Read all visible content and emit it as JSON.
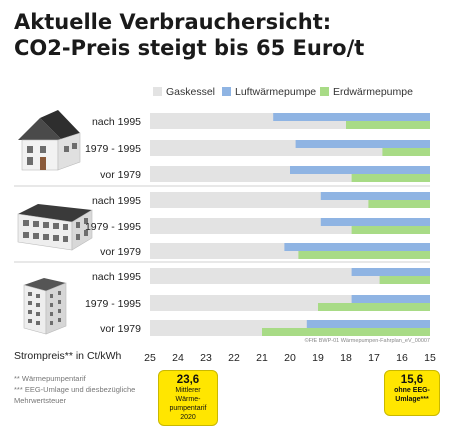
{
  "title_line1": "Aktuelle Verbrauchersicht:",
  "title_line2": "CO2-Preis steigt bis 65 Euro/t",
  "chart_data": {
    "type": "bar",
    "orientation": "horizontal",
    "x_axis_reversed": true,
    "xlim": [
      25,
      15
    ],
    "xticks": [
      25,
      24,
      23,
      22,
      21,
      20,
      19,
      18,
      17,
      16,
      15
    ],
    "xlabel": "Strompreis** in Ct/kWh",
    "legend_position": "top",
    "series": [
      {
        "name": "Gaskessel",
        "color": "#e3e3e3"
      },
      {
        "name": "Luftwärmepumpe",
        "color": "#8fb4e3"
      },
      {
        "name": "Erdwärmepumpe",
        "color": "#a8db86"
      }
    ],
    "categories": [
      "nach 1995",
      "1979 - 1995",
      "vor 1979",
      "nach 1995",
      "1979 - 1995",
      "vor 1979",
      "nach 1995",
      "1979 - 1995",
      "vor 1979"
    ],
    "description_groups": [
      "Einfamilienhaus",
      "Mehrfamilienhaus",
      "Hochhaus"
    ],
    "values": {
      "Luftwärmepumpe": [
        20.6,
        19.8,
        20.0,
        18.9,
        18.9,
        20.2,
        17.8,
        17.8,
        19.4
      ],
      "Erdwärmepumpe": [
        18.0,
        16.7,
        17.8,
        17.2,
        17.8,
        19.7,
        16.8,
        19.0,
        21.0
      ]
    },
    "source_note": "©FfE BWP-01 Wärmepumpen-Fahrplan_eV_00007"
  },
  "footnotes": {
    "note1": "**   Wärmepumpentarif",
    "note2": "***  EEG-Umlage und diesbezügliche",
    "note3": "       Mehrwertsteuer"
  },
  "callout_left": {
    "value": "23,6",
    "line1": "Mittlerer",
    "line2": "Wärme-",
    "line3": "pumpentarif",
    "line4": "2020"
  },
  "callout_right": {
    "value": "15,6",
    "line1": "ohne EEG-",
    "line2": "Umlage***"
  }
}
